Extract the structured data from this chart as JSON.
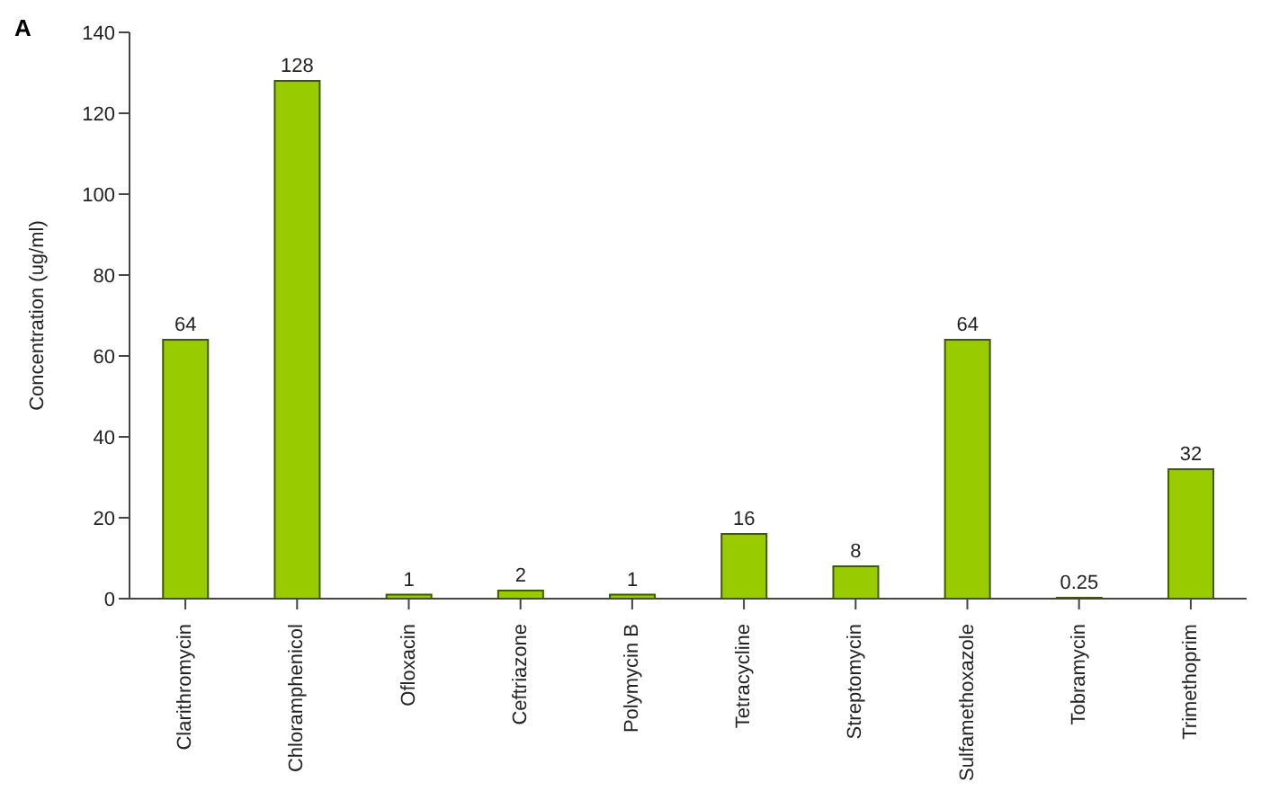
{
  "chart_data": {
    "type": "bar",
    "ylabel": "Concentration (ug/ml)",
    "annotations": [
      "A"
    ],
    "categories": [
      "Clarithromycin",
      "Chloramphenicol",
      "Ofloxacin",
      "Ceftriazone",
      "Polymycin B",
      "Tetracycline",
      "Streptomycin",
      "Sulfamethoxazole",
      "Tobramycin",
      "Trimethoprim"
    ],
    "values": [
      64,
      128,
      1,
      2,
      1,
      16,
      8,
      64,
      0.25,
      32
    ],
    "color": "#99cc00",
    "ylim": [
      0,
      140
    ],
    "yticks": [
      0,
      20,
      40,
      60,
      80,
      100,
      120,
      140
    ],
    "data_labels": true,
    "grid": false
  }
}
